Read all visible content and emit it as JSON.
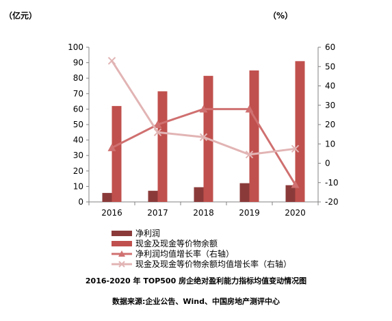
{
  "units": {
    "left": "（亿元）",
    "right": "（%）"
  },
  "caption": "2016-2020 年 TOP500 房企绝对盈利能力指标均值变动情况图",
  "source": "数据来源:企业公告、Wind、中国房地产测评中心",
  "colors": {
    "net_profit": "#8B3A3A",
    "cash": "#C0504D",
    "net_profit_growth": "#D07070",
    "cash_growth": "#E2B4B4",
    "axis": "#808080"
  },
  "chart_data": {
    "type": "bar",
    "title": "",
    "categories": [
      "2016",
      "2017",
      "2018",
      "2019",
      "2020"
    ],
    "ylim_left": [
      0,
      100
    ],
    "yticks_left": [
      0,
      10,
      20,
      30,
      40,
      50,
      60,
      70,
      80,
      90,
      100
    ],
    "ylim_right": [
      -20,
      60
    ],
    "yticks_right": [
      -20,
      -10,
      0,
      10,
      20,
      30,
      40,
      50,
      60
    ],
    "legend_position": "bottom",
    "grid": false,
    "series": [
      {
        "name": "净利润",
        "type": "bar",
        "axis": "left",
        "values": [
          5.8,
          7.2,
          9.5,
          12.1,
          10.8
        ]
      },
      {
        "name": "现金及现金等价物余额",
        "type": "bar",
        "axis": "left",
        "values": [
          62,
          71.5,
          81.5,
          85,
          91
        ]
      },
      {
        "name": "净利润均值增长率（右轴）",
        "type": "line",
        "marker": "triangle",
        "axis": "right",
        "values": [
          8,
          20,
          28,
          28,
          -11
        ]
      },
      {
        "name": "现金及现金等价物余额均值增长率（右轴）",
        "type": "line",
        "marker": "x",
        "axis": "right",
        "values": [
          53,
          16,
          13.5,
          4.5,
          7.5
        ]
      }
    ]
  }
}
